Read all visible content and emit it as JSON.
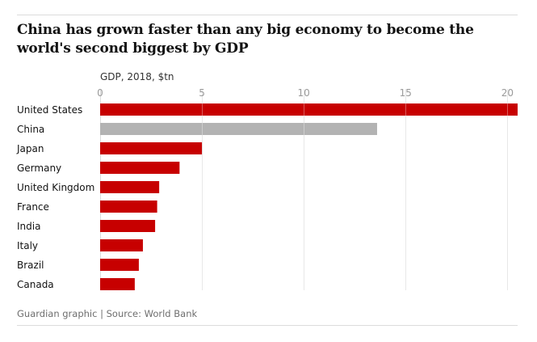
{
  "header": {
    "title": "China has grown faster than any big economy to become the world's second biggest by GDP"
  },
  "chart_data": {
    "type": "bar",
    "orientation": "horizontal",
    "unit_label": "GDP, 2018, $tn",
    "categories": [
      "United States",
      "China",
      "Japan",
      "Germany",
      "United Kingdom",
      "France",
      "India",
      "Italy",
      "Brazil",
      "Canada"
    ],
    "values": [
      20.5,
      13.6,
      5.0,
      3.9,
      2.9,
      2.8,
      2.7,
      2.1,
      1.9,
      1.7
    ],
    "highlight": "China",
    "colors": {
      "default": "#c70000",
      "highlight": "#b3b3b3",
      "gridline": "#dcdcdc"
    },
    "xlim": [
      0,
      20.5
    ],
    "xticks": [
      0,
      5,
      10,
      15,
      20
    ],
    "grid": true,
    "axis_position": "top"
  },
  "footer": {
    "source": "Guardian graphic | Source: World Bank"
  }
}
